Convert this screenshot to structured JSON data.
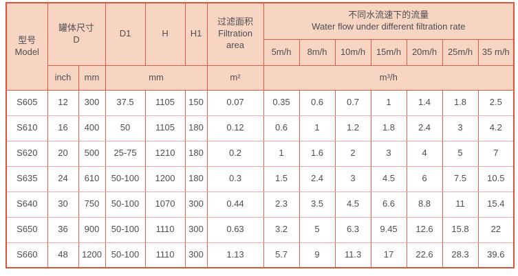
{
  "colors": {
    "header_bg": "#f7d5c2",
    "border_strong": "#dd5b41",
    "border_light": "#f2a89c",
    "border_mid": "#e2604b",
    "text": "#4e4e50",
    "page_bg": "#ffffff"
  },
  "table": {
    "header": {
      "model_zh": "型号",
      "model_en": "Model",
      "tank_zh": "罐体尺寸",
      "tank_en": "D",
      "d1": "D1",
      "h": "H",
      "h1": "H1",
      "filtration_zh": "过滤面积",
      "filtration_en": "Filtration area",
      "flow_zh": "不同水流速下的流量",
      "flow_en": "Water flow under different filtration rate",
      "rates": [
        "5m/h",
        "8m/h",
        "10m/h",
        "15m/h",
        "20m/h",
        "25m/h",
        "35 m/h"
      ],
      "unit_inch": "inch",
      "unit_mm": "mm",
      "unit_mm_span": "mm",
      "unit_area": "m²",
      "unit_flow": "m³/h"
    },
    "rows": [
      {
        "model": "S605",
        "inch": "12",
        "mm": "300",
        "d1": "37.5",
        "h": "1105",
        "h1": "150",
        "area": "0.07",
        "flows": [
          "0.35",
          "0.6",
          "0.7",
          "1",
          "1.4",
          "1.8",
          "2.5"
        ]
      },
      {
        "model": "S610",
        "inch": "16",
        "mm": "400",
        "d1": "50",
        "h": "1105",
        "h1": "180",
        "area": "0.12",
        "flows": [
          "0.6",
          "1",
          "1.2",
          "1.8",
          "2.4",
          "3",
          "4.2"
        ]
      },
      {
        "model": "S620",
        "inch": "20",
        "mm": "500",
        "d1": "25-75",
        "h": "1210",
        "h1": "180",
        "area": "0.2",
        "flows": [
          "1",
          "1.6",
          "2",
          "3",
          "4",
          "5",
          "7"
        ]
      },
      {
        "model": "S635",
        "inch": "24",
        "mm": "610",
        "d1": "50-100",
        "h": "1200",
        "h1": "180",
        "area": "0.3",
        "flows": [
          "1.5",
          "2.4",
          "3",
          "4.5",
          "6",
          "7.5",
          "10.5"
        ]
      },
      {
        "model": "S640",
        "inch": "30",
        "mm": "750",
        "d1": "50-100",
        "h": "1070",
        "h1": "300",
        "area": "0.44",
        "flows": [
          "2.3",
          "3.5",
          "4.5",
          "6.6",
          "8.8",
          "11",
          "15.4"
        ]
      },
      {
        "model": "S650",
        "inch": "36",
        "mm": "900",
        "d1": "50-100",
        "h": "1110",
        "h1": "300",
        "area": "0.63",
        "flows": [
          "3.2",
          "5",
          "6.3",
          "9.45",
          "12.6",
          "15.8",
          "22"
        ]
      },
      {
        "model": "S660",
        "inch": "48",
        "mm": "1200",
        "d1": "50-100",
        "h": "1110",
        "h1": "300",
        "area": "1.13",
        "flows": [
          "5.7",
          "9",
          "11.3",
          "17",
          "22.6",
          "28.3",
          "39.6"
        ]
      }
    ]
  }
}
